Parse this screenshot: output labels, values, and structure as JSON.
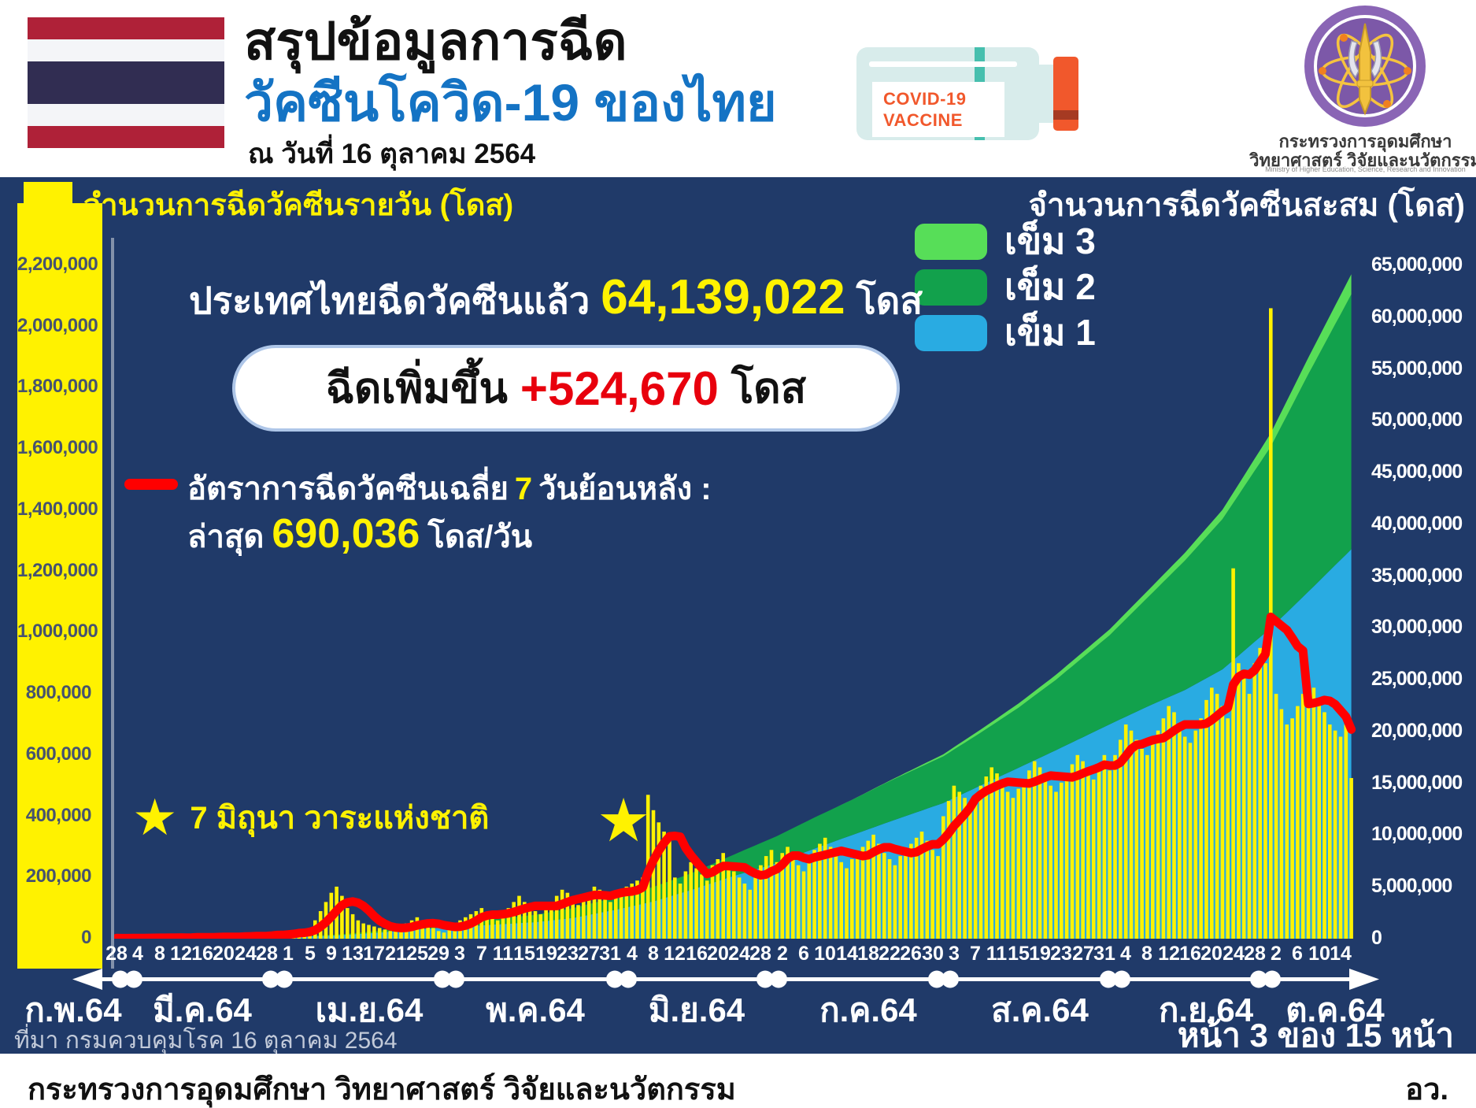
{
  "glyphs": {
    "star": "★"
  },
  "header": {
    "title_line1": "สรุปข้อมูลการฉีด",
    "title_line2": "วัคซีนโควิด-19 ของไทย",
    "date_line": "ณ วันที่ 16 ตุลาคม 2564",
    "vaccine_icon_line1": "COVID-19",
    "vaccine_icon_line2": "VACCINE",
    "ministry_name_line1": "กระทรวงการอุดมศึกษา",
    "ministry_name_line2": "วิทยาศาสตร์ วิจัยและนวัตกรรม",
    "ministry_name_en": "Ministry of Higher Education, Science, Research and Innovation"
  },
  "panel": {
    "left_axis_title": "จำนวนการฉีดวัคซีนรายวัน (โดส)",
    "right_axis_title": "จำนวนการฉีดวัคซีนสะสม (โดส)",
    "legend_labels": [
      "เข็ม 3",
      "เข็ม 2",
      "เข็ม 1"
    ],
    "stat_prefix": "ประเทศไทยฉีดวัคซีนแล้ว",
    "stat_value": "64,139,022",
    "stat_suffix": "โดส",
    "pill_prefix": "ฉีดเพิ่มขึ้น",
    "pill_value": "+524,670",
    "pill_suffix": "โดส",
    "avg_line1_pre": "อัตราการฉีดวัคซีนเฉลี่ย",
    "avg_line1_num": "7",
    "avg_line1_post": "วันย้อนหลัง :",
    "avg_line2_pre": "ล่าสุด",
    "avg_line2_num": "690,036",
    "avg_line2_post": "โดส/วัน",
    "source": "ที่มา กรมควบคุมโรค 16 ตุลาคม 2564",
    "page_note": "หน้า 3 ของ 15 หน้า"
  },
  "footer": {
    "left": "กระทรวงการอุดมศึกษา วิทยาศาสตร์ วิจัยและนวัตกรรม",
    "right": "อว."
  },
  "chart_data": {
    "type": "area+bar+line",
    "x_domain_days": 231,
    "left_axis": {
      "max": 2200000,
      "tick_labels": [
        "2,200,000",
        "2,000,000",
        "1,800,000",
        "1,600,000",
        "1,400,000",
        "1,200,000",
        "1,000,000",
        "800,000",
        "600,000",
        "400,000",
        "200,000",
        "0"
      ]
    },
    "right_axis": {
      "max": 65000000,
      "tick_labels": [
        "65,000,000",
        "60,000,000",
        "55,000,000",
        "50,000,000",
        "45,000,000",
        "40,000,000",
        "35,000,000",
        "30,000,000",
        "25,000,000",
        "20,000,000",
        "15,000,000",
        "10,000,000",
        "5,000,000",
        "0"
      ]
    },
    "day_tick_step": 4,
    "day_tick_labels": [
      "28",
      "4",
      "8",
      "12",
      "16",
      "20",
      "24",
      "28",
      "1",
      "5",
      "9",
      "13",
      "17",
      "21",
      "25",
      "29",
      "3",
      "7",
      "11",
      "15",
      "19",
      "23",
      "27",
      "31",
      "4",
      "8",
      "12",
      "16",
      "20",
      "24",
      "28",
      "2",
      "6",
      "10",
      "14",
      "18",
      "22",
      "26",
      "30",
      "3",
      "7",
      "11",
      "15",
      "19",
      "23",
      "27",
      "31",
      "4",
      "8",
      "12",
      "16",
      "20",
      "24",
      "28",
      "2",
      "6",
      "10",
      "14"
    ],
    "months": [
      {
        "label": "ก.พ.64",
        "center_day": -8
      },
      {
        "label": "มี.ค.64",
        "center_day": 16
      },
      {
        "label": "เม.ย.64",
        "center_day": 47
      },
      {
        "label": "พ.ค.64",
        "center_day": 78
      },
      {
        "label": "มิ.ย.64",
        "center_day": 108
      },
      {
        "label": "ก.ค.64",
        "center_day": 140
      },
      {
        "label": "ส.ค.64",
        "center_day": 172
      },
      {
        "label": "ก.ย.64",
        "center_day": 203
      },
      {
        "label": "ต.ค.64",
        "center_day": 227
      }
    ],
    "month_boundary_days": [
      2,
      30,
      62,
      94,
      122,
      154,
      186,
      214
    ],
    "annotations": {
      "star_day": 95,
      "star_note": "7 มิถุนา วาระแห่งชาติ"
    },
    "series": {
      "daily_doses_thousands": [
        2,
        1,
        2,
        2,
        3,
        3,
        4,
        3,
        2,
        3,
        4,
        5,
        4,
        3,
        5,
        6,
        5,
        4,
        6,
        7,
        8,
        6,
        5,
        7,
        9,
        10,
        12,
        10,
        8,
        15,
        18,
        12,
        20,
        25,
        30,
        15,
        35,
        60,
        90,
        120,
        150,
        170,
        140,
        100,
        80,
        60,
        50,
        45,
        40,
        35,
        30,
        25,
        30,
        40,
        50,
        60,
        70,
        55,
        45,
        35,
        25,
        20,
        40,
        50,
        60,
        70,
        80,
        90,
        100,
        80,
        70,
        60,
        80,
        100,
        120,
        140,
        120,
        100,
        90,
        80,
        100,
        120,
        140,
        160,
        150,
        130,
        110,
        130,
        150,
        170,
        160,
        140,
        120,
        150,
        160,
        170,
        180,
        190,
        200,
        470,
        420,
        380,
        350,
        330,
        200,
        180,
        220,
        250,
        230,
        210,
        190,
        240,
        260,
        280,
        250,
        220,
        200,
        180,
        160,
        200,
        240,
        270,
        290,
        250,
        280,
        300,
        270,
        240,
        220,
        260,
        290,
        310,
        330,
        300,
        270,
        250,
        230,
        260,
        280,
        300,
        320,
        340,
        310,
        280,
        260,
        240,
        270,
        290,
        310,
        330,
        350,
        320,
        290,
        270,
        400,
        450,
        500,
        480,
        460,
        440,
        470,
        500,
        530,
        560,
        540,
        510,
        480,
        460,
        490,
        520,
        550,
        580,
        560,
        530,
        500,
        480,
        510,
        540,
        570,
        600,
        580,
        550,
        520,
        560,
        600,
        550,
        600,
        650,
        700,
        680,
        650,
        620,
        600,
        640,
        680,
        720,
        760,
        740,
        700,
        660,
        640,
        680,
        720,
        780,
        820,
        800,
        760,
        720,
        1210,
        900,
        850,
        800,
        900,
        950,
        900,
        2060,
        800,
        750,
        700,
        720,
        760,
        800,
        840,
        820,
        780,
        740,
        700,
        680,
        660,
        700,
        525
      ],
      "avg7_window": 7,
      "cumulative_anchors": {
        "days": [
          0,
          7,
          14,
          21,
          28,
          35,
          42,
          49,
          56,
          62,
          70,
          78,
          85,
          93,
          100,
          107,
          114,
          123,
          130,
          137,
          144,
          154,
          161,
          168,
          175,
          185,
          192,
          199,
          206,
          215,
          222,
          230
        ],
        "dose1_millions": [
          0.01,
          0.03,
          0.05,
          0.08,
          0.12,
          0.2,
          0.35,
          0.6,
          0.9,
          1.1,
          1.35,
          1.6,
          2.0,
          2.8,
          3.6,
          4.7,
          5.9,
          7.3,
          8.7,
          10.0,
          11.3,
          13.1,
          14.8,
          16.5,
          18.2,
          20.7,
          22.4,
          24.0,
          26.0,
          30.0,
          33.5,
          37.6
        ],
        "dose2_millions": [
          0,
          0.002,
          0.01,
          0.02,
          0.03,
          0.05,
          0.08,
          0.15,
          0.3,
          0.4,
          0.55,
          0.7,
          0.95,
          1.2,
          1.4,
          1.6,
          2.0,
          2.6,
          3.0,
          3.4,
          3.9,
          4.5,
          5.1,
          5.8,
          6.8,
          8.6,
          10.5,
          12.5,
          14.5,
          17.5,
          21.0,
          24.6
        ],
        "dose3_millions": [
          0,
          0,
          0,
          0,
          0,
          0,
          0,
          0,
          0,
          0,
          0,
          0,
          0,
          0,
          0,
          0,
          0,
          0,
          0,
          0.01,
          0.05,
          0.2,
          0.3,
          0.4,
          0.48,
          0.57,
          0.65,
          0.75,
          0.9,
          1.3,
          1.6,
          1.94
        ]
      }
    },
    "colors": {
      "bar": "#FFF200",
      "dose1": "#29ABE2",
      "dose2": "#12A14C",
      "dose3": "#57DE58",
      "avg_line": "#FF0000",
      "panel_bg": "#203A69"
    }
  }
}
